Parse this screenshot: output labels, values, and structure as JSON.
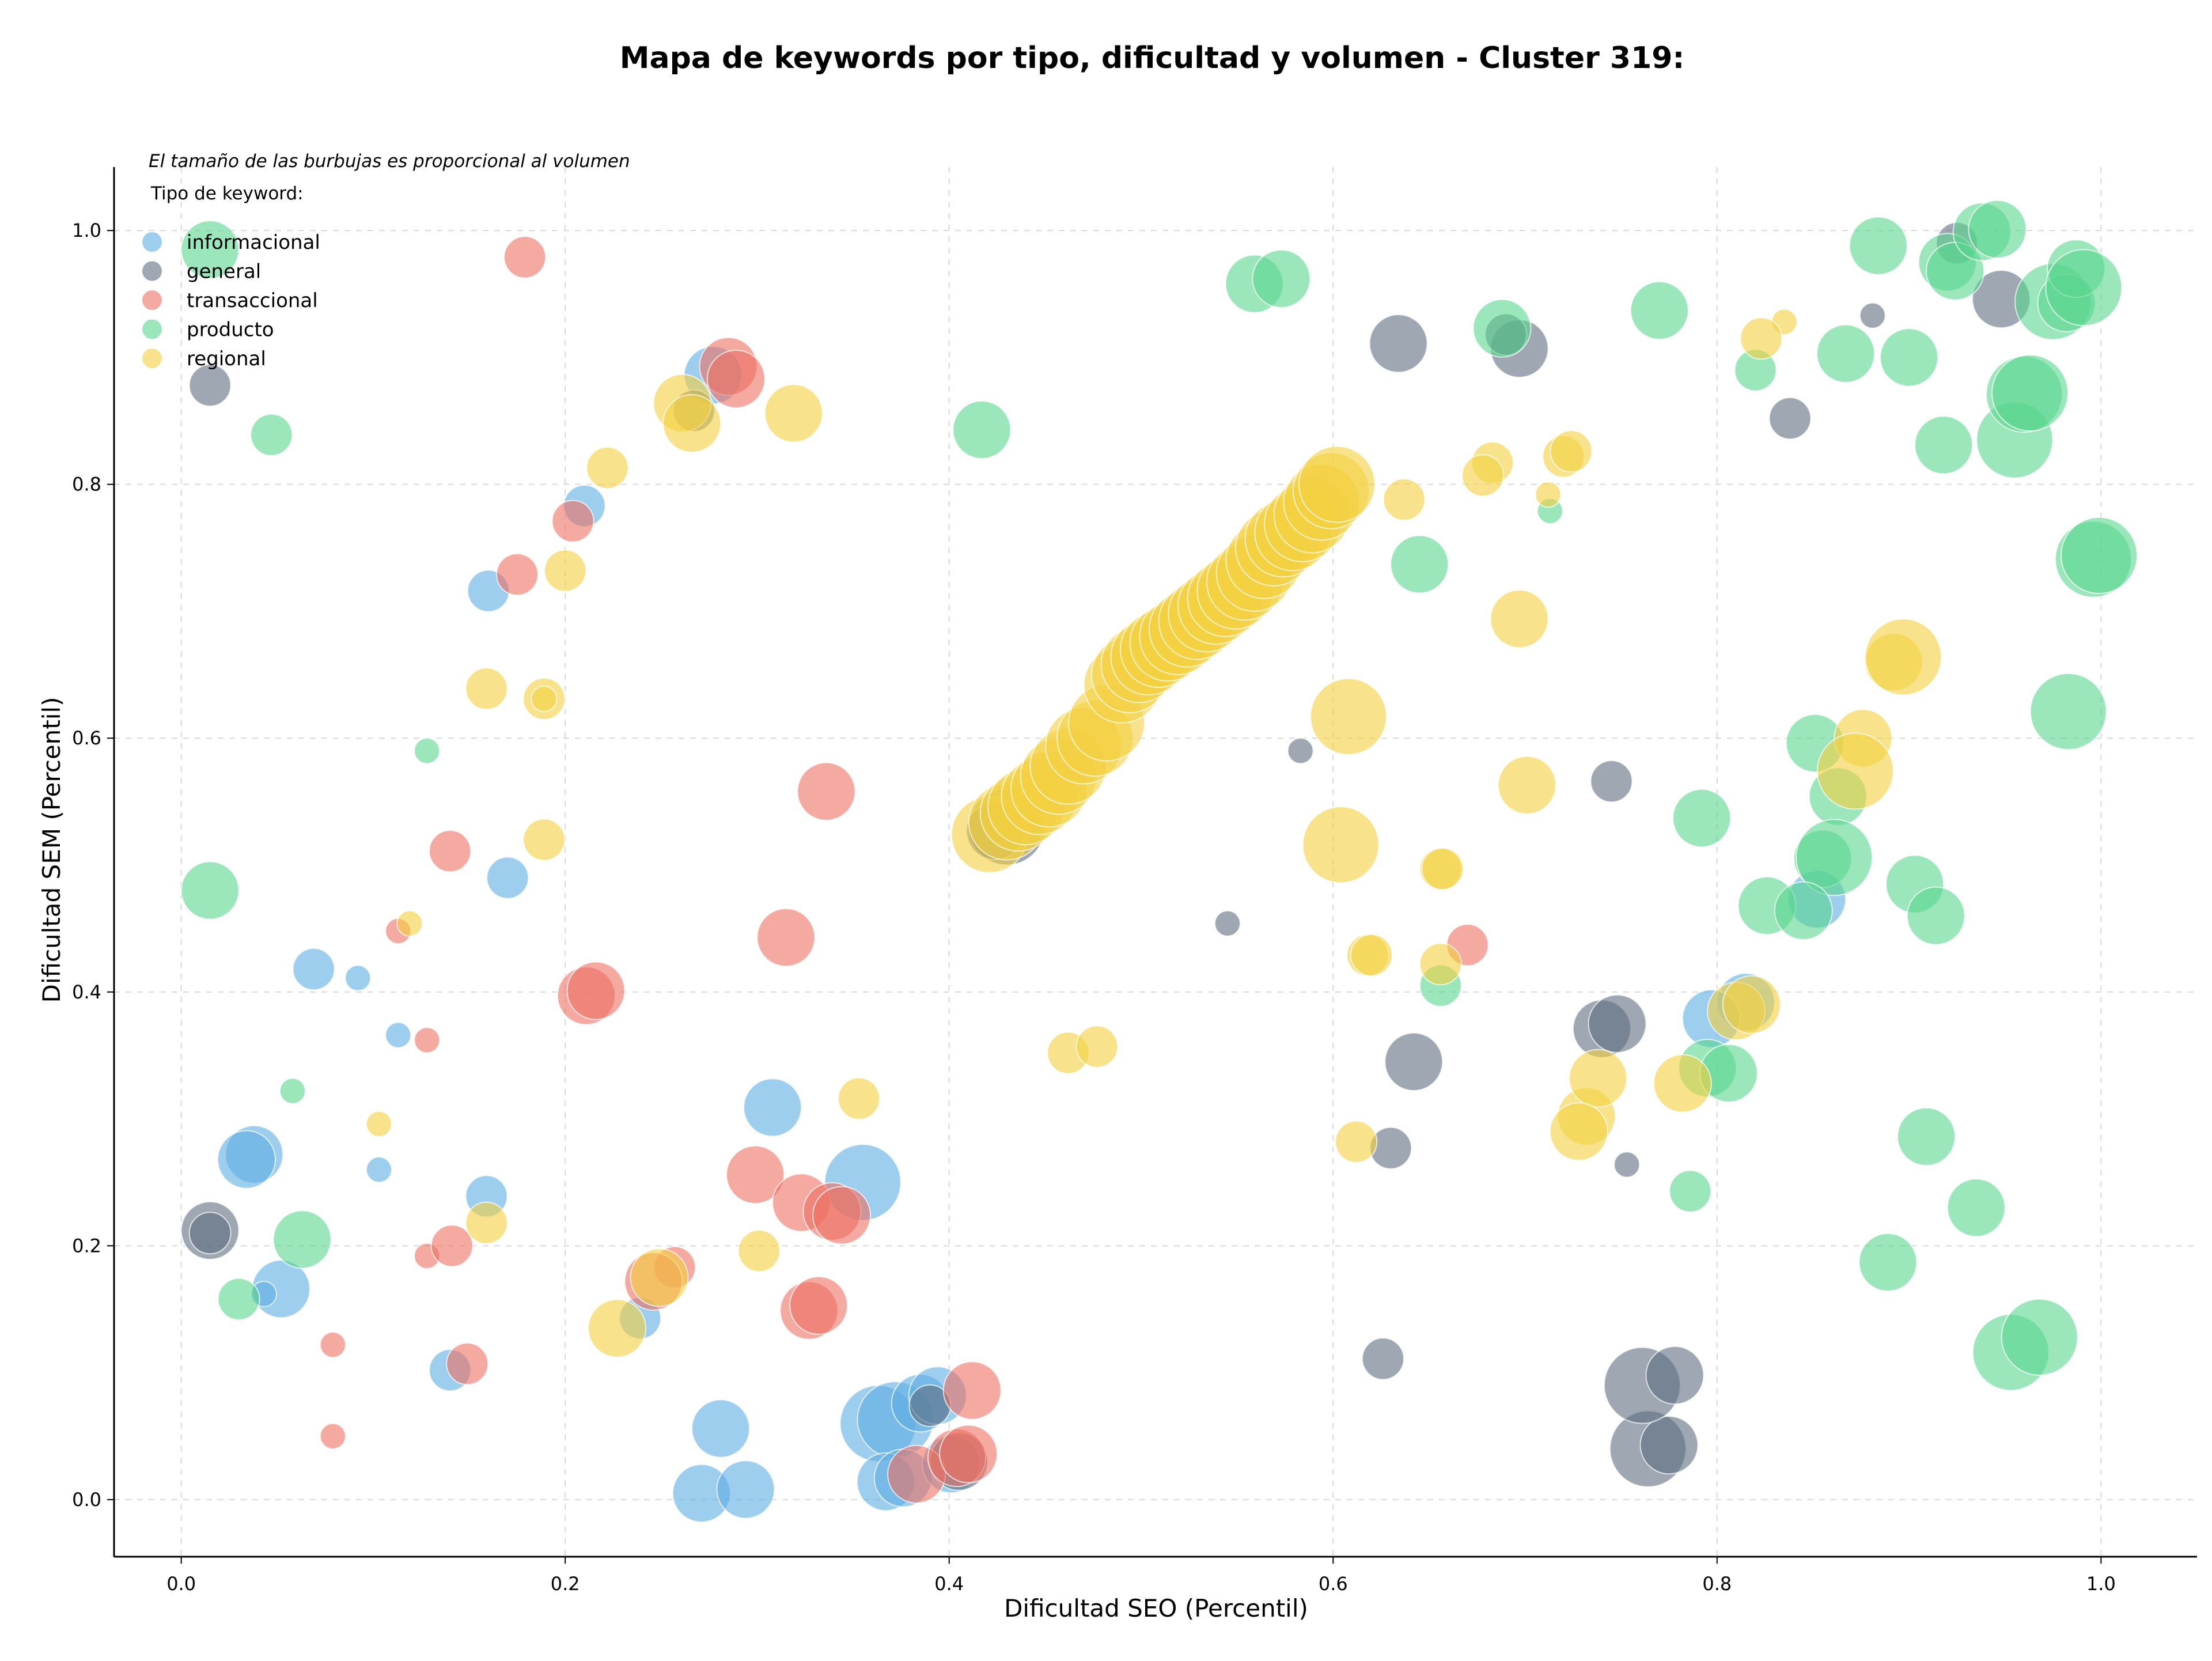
{
  "chart_data": {
    "type": "scatter",
    "title": "Mapa de keywords por tipo, dificultad y volumen - Cluster 319:",
    "xlabel": "Dificultad SEO (Percentil)",
    "ylabel": "Dificultad SEM (Percentil)",
    "xlim": [
      -0.035,
      1.05
    ],
    "ylim": [
      -0.045,
      1.05
    ],
    "x_ticks": [
      0.0,
      0.2,
      0.4,
      0.6,
      0.8,
      1.0
    ],
    "y_ticks": [
      0.0,
      0.2,
      0.4,
      0.6,
      0.8,
      1.0
    ],
    "x_tick_labels": [
      "0.0",
      "0.2",
      "0.4",
      "0.6",
      "0.8",
      "1.0"
    ],
    "y_tick_labels": [
      "0.0",
      "0.2",
      "0.4",
      "0.6",
      "0.8",
      "1.0"
    ],
    "grid": true,
    "note": "El tamaño de las burbujas es proporcional al volumen",
    "legend_title": "Tipo de keyword:",
    "legend_position": "top-left",
    "series": [
      {
        "name": "informacional",
        "color": "#5dade2",
        "points": [
          [
            0.21,
            0.783,
            2
          ],
          [
            0.16,
            0.716,
            2
          ],
          [
            0.277,
            0.886,
            3
          ],
          [
            0.17,
            0.49,
            2
          ],
          [
            0.069,
            0.418,
            2
          ],
          [
            0.092,
            0.411,
            1
          ],
          [
            0.113,
            0.366,
            1
          ],
          [
            0.103,
            0.26,
            1
          ],
          [
            0.038,
            0.272,
            3
          ],
          [
            0.034,
            0.268,
            3
          ],
          [
            0.052,
            0.166,
            3
          ],
          [
            0.043,
            0.162,
            1
          ],
          [
            0.159,
            0.239,
            2
          ],
          [
            0.14,
            0.102,
            2
          ],
          [
            0.239,
            0.143,
            2
          ],
          [
            0.308,
            0.309,
            3
          ],
          [
            0.355,
            0.25,
            4
          ],
          [
            0.281,
            0.056,
            3
          ],
          [
            0.271,
            0.005,
            3
          ],
          [
            0.294,
            0.008,
            3
          ],
          [
            0.363,
            0.06,
            4
          ],
          [
            0.372,
            0.063,
            4
          ],
          [
            0.367,
            0.014,
            3
          ],
          [
            0.376,
            0.017,
            3
          ],
          [
            0.385,
            0.076,
            3
          ],
          [
            0.394,
            0.082,
            3
          ],
          [
            0.401,
            0.028,
            3
          ],
          [
            0.815,
            0.392,
            3
          ],
          [
            0.797,
            0.379,
            3
          ],
          [
            0.852,
            0.473,
            3
          ]
        ]
      },
      {
        "name": "general",
        "color": "#5d6d7e",
        "points": [
          [
            0.015,
            0.878,
            2
          ],
          [
            0.015,
            0.212,
            3
          ],
          [
            0.015,
            0.21,
            2
          ],
          [
            0.267,
            0.858,
            2
          ],
          [
            0.43,
            0.53,
            4
          ],
          [
            0.424,
            0.527,
            3
          ],
          [
            0.634,
            0.911,
            3
          ],
          [
            0.697,
            0.907,
            3
          ],
          [
            0.69,
            0.918,
            2
          ],
          [
            0.545,
            0.454,
            1
          ],
          [
            0.583,
            0.59,
            1
          ],
          [
            0.745,
            0.566,
            2
          ],
          [
            0.642,
            0.345,
            3
          ],
          [
            0.63,
            0.277,
            2
          ],
          [
            0.753,
            0.264,
            1
          ],
          [
            0.626,
            0.111,
            2
          ],
          [
            0.74,
            0.371,
            3
          ],
          [
            0.748,
            0.375,
            3
          ],
          [
            0.764,
            0.04,
            4
          ],
          [
            0.775,
            0.043,
            3
          ],
          [
            0.761,
            0.09,
            4
          ],
          [
            0.778,
            0.098,
            3
          ],
          [
            0.881,
            0.933,
            1
          ],
          [
            0.838,
            0.852,
            2
          ],
          [
            0.948,
            0.946,
            3
          ],
          [
            0.925,
            0.99,
            2
          ],
          [
            0.39,
            0.074,
            2
          ],
          [
            0.405,
            0.03,
            3
          ]
        ]
      },
      {
        "name": "transaccional",
        "color": "#ec7063",
        "points": [
          [
            0.179,
            0.979,
            2
          ],
          [
            0.285,
            0.893,
            3
          ],
          [
            0.289,
            0.883,
            3
          ],
          [
            0.175,
            0.729,
            2
          ],
          [
            0.204,
            0.771,
            2
          ],
          [
            0.14,
            0.511,
            2
          ],
          [
            0.113,
            0.448,
            1
          ],
          [
            0.128,
            0.362,
            1
          ],
          [
            0.336,
            0.558,
            3
          ],
          [
            0.315,
            0.443,
            3
          ],
          [
            0.211,
            0.397,
            3
          ],
          [
            0.216,
            0.401,
            3
          ],
          [
            0.128,
            0.192,
            1
          ],
          [
            0.141,
            0.2,
            2
          ],
          [
            0.149,
            0.107,
            2
          ],
          [
            0.079,
            0.122,
            1
          ],
          [
            0.079,
            0.05,
            1
          ],
          [
            0.299,
            0.256,
            3
          ],
          [
            0.323,
            0.234,
            3
          ],
          [
            0.339,
            0.227,
            3
          ],
          [
            0.344,
            0.224,
            3
          ],
          [
            0.327,
            0.149,
            3
          ],
          [
            0.332,
            0.153,
            3
          ],
          [
            0.257,
            0.183,
            2
          ],
          [
            0.246,
            0.172,
            3
          ],
          [
            0.383,
            0.02,
            3
          ],
          [
            0.404,
            0.033,
            3
          ],
          [
            0.41,
            0.036,
            3
          ],
          [
            0.412,
            0.086,
            3
          ],
          [
            0.67,
            0.437,
            2
          ]
        ]
      },
      {
        "name": "producto",
        "color": "#58d68d",
        "points": [
          [
            0.015,
            0.985,
            3
          ],
          [
            0.047,
            0.839,
            2
          ],
          [
            0.128,
            0.59,
            1
          ],
          [
            0.015,
            0.48,
            3
          ],
          [
            0.058,
            0.322,
            1
          ],
          [
            0.063,
            0.205,
            3
          ],
          [
            0.03,
            0.158,
            2
          ],
          [
            0.417,
            0.843,
            3
          ],
          [
            0.559,
            0.958,
            3
          ],
          [
            0.573,
            0.962,
            3
          ],
          [
            0.645,
            0.737,
            3
          ],
          [
            0.688,
            0.923,
            3
          ],
          [
            0.713,
            0.779,
            1
          ],
          [
            0.77,
            0.937,
            3
          ],
          [
            0.656,
            0.405,
            2
          ],
          [
            0.792,
            0.537,
            3
          ],
          [
            0.786,
            0.243,
            2
          ],
          [
            0.795,
            0.34,
            3
          ],
          [
            0.806,
            0.336,
            3
          ],
          [
            0.82,
            0.89,
            2
          ],
          [
            0.867,
            0.903,
            3
          ],
          [
            0.884,
            0.988,
            3
          ],
          [
            0.9,
            0.9,
            3
          ],
          [
            0.92,
            0.975,
            3
          ],
          [
            0.924,
            0.968,
            3
          ],
          [
            0.938,
            0.999,
            3
          ],
          [
            0.946,
            1.001,
            3
          ],
          [
            0.918,
            0.831,
            3
          ],
          [
            0.955,
            0.835,
            4
          ],
          [
            0.96,
            0.871,
            4
          ],
          [
            0.963,
            0.872,
            4
          ],
          [
            0.975,
            0.944,
            4
          ],
          [
            0.982,
            0.943,
            3
          ],
          [
            0.987,
            0.97,
            3
          ],
          [
            0.991,
            0.955,
            4
          ],
          [
            0.996,
            0.741,
            4
          ],
          [
            0.999,
            0.744,
            4
          ],
          [
            0.983,
            0.621,
            4
          ],
          [
            0.851,
            0.596,
            3
          ],
          [
            0.863,
            0.554,
            3
          ],
          [
            0.855,
            0.505,
            3
          ],
          [
            0.861,
            0.506,
            4
          ],
          [
            0.826,
            0.468,
            3
          ],
          [
            0.845,
            0.464,
            3
          ],
          [
            0.903,
            0.485,
            3
          ],
          [
            0.914,
            0.46,
            3
          ],
          [
            0.909,
            0.286,
            3
          ],
          [
            0.935,
            0.23,
            3
          ],
          [
            0.889,
            0.187,
            3
          ],
          [
            0.953,
            0.116,
            4
          ],
          [
            0.968,
            0.128,
            4
          ]
        ]
      },
      {
        "name": "regional",
        "color": "#f4d03f",
        "points": [
          [
            0.222,
            0.813,
            2
          ],
          [
            0.2,
            0.732,
            2
          ],
          [
            0.159,
            0.639,
            2
          ],
          [
            0.189,
            0.631,
            2
          ],
          [
            0.189,
            0.631,
            1
          ],
          [
            0.189,
            0.52,
            2
          ],
          [
            0.119,
            0.454,
            1
          ],
          [
            0.159,
            0.218,
            2
          ],
          [
            0.103,
            0.296,
            1
          ],
          [
            0.261,
            0.864,
            3
          ],
          [
            0.266,
            0.848,
            3
          ],
          [
            0.319,
            0.856,
            3
          ],
          [
            0.353,
            0.316,
            2
          ],
          [
            0.301,
            0.196,
            2
          ],
          [
            0.227,
            0.135,
            3
          ],
          [
            0.249,
            0.175,
            3
          ],
          [
            0.462,
            0.352,
            2
          ],
          [
            0.477,
            0.357,
            2
          ],
          [
            0.608,
            0.617,
            4
          ],
          [
            0.604,
            0.516,
            4
          ],
          [
            0.618,
            0.429,
            2
          ],
          [
            0.62,
            0.429,
            2
          ],
          [
            0.612,
            0.282,
            2
          ],
          [
            0.656,
            0.497,
            2
          ],
          [
            0.656,
            0.422,
            2
          ],
          [
            0.697,
            0.694,
            3
          ],
          [
            0.701,
            0.563,
            3
          ],
          [
            0.657,
            0.497,
            2
          ],
          [
            0.637,
            0.788,
            2
          ],
          [
            0.683,
            0.817,
            2
          ],
          [
            0.678,
            0.807,
            2
          ],
          [
            0.712,
            0.792,
            1
          ],
          [
            0.72,
            0.822,
            2
          ],
          [
            0.724,
            0.826,
            2
          ],
          [
            0.835,
            0.928,
            1
          ],
          [
            0.823,
            0.915,
            2
          ],
          [
            0.732,
            0.302,
            3
          ],
          [
            0.738,
            0.332,
            3
          ],
          [
            0.728,
            0.29,
            3
          ],
          [
            0.782,
            0.328,
            3
          ],
          [
            0.81,
            0.385,
            3
          ],
          [
            0.818,
            0.39,
            3
          ],
          [
            0.876,
            0.6,
            3
          ],
          [
            0.872,
            0.574,
            4
          ],
          [
            0.892,
            0.66,
            3
          ],
          [
            0.897,
            0.664,
            4
          ],
          [
            0.421,
            0.524,
            4
          ],
          [
            0.43,
            0.534,
            4
          ],
          [
            0.436,
            0.541,
            4
          ],
          [
            0.44,
            0.546,
            4
          ],
          [
            0.447,
            0.554,
            4
          ],
          [
            0.452,
            0.56,
            4
          ],
          [
            0.457,
            0.57,
            4
          ],
          [
            0.462,
            0.578,
            4
          ],
          [
            0.47,
            0.594,
            4
          ],
          [
            0.476,
            0.6,
            4
          ],
          [
            0.482,
            0.612,
            4
          ],
          [
            0.49,
            0.642,
            4
          ],
          [
            0.494,
            0.65,
            4
          ],
          [
            0.499,
            0.658,
            4
          ],
          [
            0.504,
            0.664,
            4
          ],
          [
            0.509,
            0.67,
            4
          ],
          [
            0.514,
            0.675,
            4
          ],
          [
            0.519,
            0.68,
            4
          ],
          [
            0.524,
            0.686,
            4
          ],
          [
            0.529,
            0.692,
            4
          ],
          [
            0.534,
            0.698,
            4
          ],
          [
            0.539,
            0.704,
            4
          ],
          [
            0.544,
            0.71,
            4
          ],
          [
            0.549,
            0.716,
            4
          ],
          [
            0.554,
            0.723,
            4
          ],
          [
            0.559,
            0.73,
            4
          ],
          [
            0.564,
            0.74,
            4
          ],
          [
            0.569,
            0.75,
            4
          ],
          [
            0.574,
            0.757,
            4
          ],
          [
            0.579,
            0.762,
            4
          ],
          [
            0.584,
            0.769,
            4
          ],
          [
            0.589,
            0.776,
            4
          ],
          [
            0.594,
            0.786,
            4
          ],
          [
            0.599,
            0.795,
            4
          ],
          [
            0.602,
            0.8,
            4
          ]
        ]
      }
    ]
  }
}
